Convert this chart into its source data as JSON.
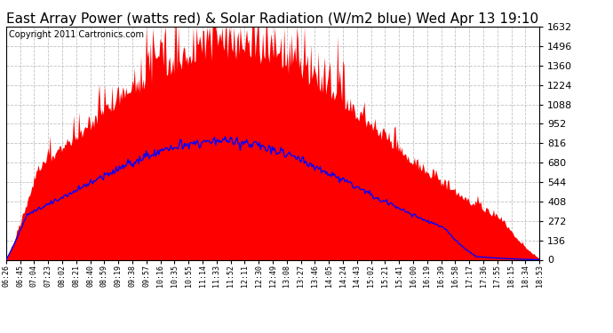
{
  "title": "East Array Power (watts red) & Solar Radiation (W/m2 blue) Wed Apr 13 19:10",
  "copyright": "Copyright 2011 Cartronics.com",
  "y_ticks": [
    0.0,
    136.0,
    272.0,
    407.9,
    543.9,
    679.9,
    815.9,
    951.8,
    1087.8,
    1223.8,
    1359.8,
    1495.7,
    1631.7
  ],
  "x_labels": [
    "06:26",
    "06:45",
    "07:04",
    "07:23",
    "08:02",
    "08:21",
    "08:40",
    "08:59",
    "09:19",
    "09:38",
    "09:57",
    "10:16",
    "10:35",
    "10:55",
    "11:14",
    "11:33",
    "11:52",
    "12:11",
    "12:30",
    "12:49",
    "13:08",
    "13:27",
    "13:46",
    "14:05",
    "14:24",
    "14:43",
    "15:02",
    "15:21",
    "15:41",
    "16:00",
    "16:19",
    "16:39",
    "16:58",
    "17:17",
    "17:36",
    "17:55",
    "18:15",
    "18:34",
    "18:53"
  ],
  "ymax": 1631.7,
  "ymin": 0.0,
  "bg_color": "#ffffff",
  "fill_color_red": "#ff0000",
  "line_color_blue": "#0000ff",
  "grid_color": "#bbbbbb",
  "title_fontsize": 11,
  "copyright_fontsize": 7,
  "tick_fontsize": 8,
  "xtick_fontsize": 6
}
